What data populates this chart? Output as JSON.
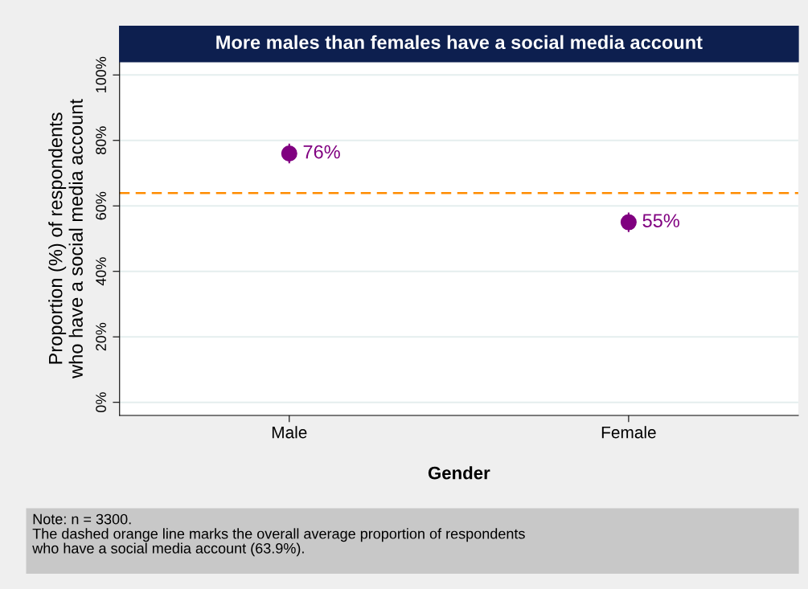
{
  "chart_data": {
    "type": "scatter",
    "title": "More males than females have a social media account",
    "xlabel": "Gender",
    "ylabel": "Proportion (%) of respondents\nwho have a social media account",
    "categories": [
      "Male",
      "Female"
    ],
    "series": [
      {
        "color": "#800080",
        "values": [
          76,
          55
        ],
        "errors": [
          3,
          3
        ],
        "value_labels": [
          "76%",
          "55%"
        ]
      }
    ],
    "ylim": [
      -4,
      104
    ],
    "yticks": [
      {
        "value": 0,
        "label": "0%"
      },
      {
        "value": 20,
        "label": "20%"
      },
      {
        "value": 40,
        "label": "40%"
      },
      {
        "value": 60,
        "label": "60%"
      },
      {
        "value": 80,
        "label": "80%"
      },
      {
        "value": 100,
        "label": "100%"
      }
    ],
    "grid": "y",
    "marker": "circle",
    "ref_lines": [
      {
        "axis": "y",
        "value": 63.9,
        "color": "#ff8c00",
        "line_style": "dashed"
      }
    ],
    "annotations": [
      "Note: n = 3300.\nThe dashed orange line marks the overall average proportion of respondents\nwho have a social media account (63.9%)."
    ]
  }
}
